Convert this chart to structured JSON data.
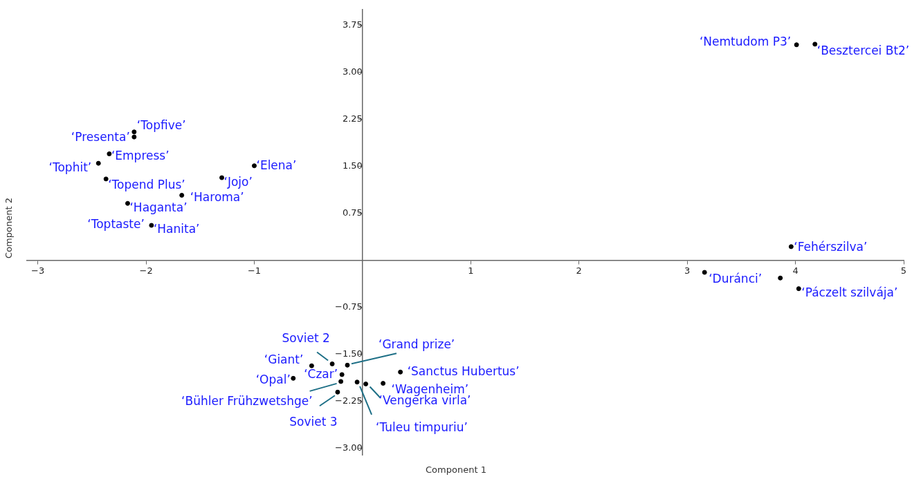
{
  "chart_data": {
    "type": "scatter",
    "xlabel": "Component 1",
    "ylabel": "Component 2",
    "xlim": [
      -3.1,
      5
    ],
    "ylim": [
      -3.1,
      4.0
    ],
    "xticks": [
      {
        "value": -3,
        "label": "−3"
      },
      {
        "value": -2,
        "label": "−2"
      },
      {
        "value": -1,
        "label": "−1"
      },
      1,
      2,
      3,
      4,
      5
    ],
    "yticks": [
      {
        "value": -3,
        "label": "−3.00"
      },
      {
        "value": -2.25,
        "label": "−2.25"
      },
      {
        "value": -1.5,
        "label": "−1.50"
      },
      {
        "value": -0.75,
        "label": "−0.75"
      },
      0.75,
      {
        "value": 1.5,
        "label": "1.50"
      },
      2.25,
      {
        "value": 3,
        "label": "3.00"
      },
      3.75
    ],
    "grid": false,
    "legend": false,
    "marker": "circle",
    "series": [
      {
        "color": "#000000",
        "x": [
          4.01,
          4.18,
          3.96,
          3.16,
          3.86,
          4.03,
          -2.11,
          -2.11,
          -2.34,
          -2.44,
          -1.0,
          -1.3,
          -2.37,
          -1.67,
          -2.17,
          -1.95,
          -0.47,
          -0.28,
          -0.14,
          -0.19,
          -0.64,
          -0.2,
          -0.23,
          -0.05,
          0.03,
          0.19,
          0.35
        ],
        "values": [
          3.44,
          3.45,
          0.22,
          -0.19,
          -0.28,
          -0.45,
          2.05,
          1.97,
          1.7,
          1.55,
          1.51,
          1.32,
          1.3,
          1.04,
          0.91,
          0.56,
          -1.68,
          -1.65,
          -1.67,
          -1.82,
          -1.88,
          -1.93,
          -2.1,
          -1.94,
          -1.97,
          -1.96,
          -1.78
        ]
      }
    ],
    "annotations": [
      {
        "text": "‘Nemtudom P3’",
        "x": 4.01,
        "y": 3.44
      },
      {
        "text": "‘Besztercei Bt2’",
        "x": 4.18,
        "y": 3.45
      },
      {
        "text": "‘Fehérszilva’",
        "x": 3.96,
        "y": 0.22
      },
      {
        "text": "‘Duránci’",
        "x": 3.16,
        "y": -0.19
      },
      {
        "text": "‘Páczelt szilvája’",
        "x": 4.03,
        "y": -0.45
      },
      {
        "text": "‘Topfive’",
        "x": -2.11,
        "y": 2.05
      },
      {
        "text": "‘Presenta’",
        "x": -2.11,
        "y": 1.97
      },
      {
        "text": "‘Empress’",
        "x": -2.34,
        "y": 1.7
      },
      {
        "text": "‘Tophit’",
        "x": -2.44,
        "y": 1.55
      },
      {
        "text": "‘Elena’",
        "x": -1.0,
        "y": 1.51
      },
      {
        "text": "‘Jojo’",
        "x": -1.3,
        "y": 1.32
      },
      {
        "text": "‘Topend Plus’",
        "x": -2.37,
        "y": 1.3
      },
      {
        "text": "‘Haroma’",
        "x": -1.67,
        "y": 1.04
      },
      {
        "text": "‘Haganta’",
        "x": -2.17,
        "y": 0.91
      },
      {
        "text": "‘Toptaste’",
        "x": -1.95,
        "y": 0.56
      },
      {
        "text": "‘Hanita’",
        "x": -1.95,
        "y": 0.56
      },
      {
        "text": "‘Giant’",
        "x": -0.47,
        "y": -1.68
      },
      {
        "text": "Soviet 2",
        "x": -0.28,
        "y": -1.65
      },
      {
        "text": "‘Grand prize’",
        "x": -0.14,
        "y": -1.67
      },
      {
        "text": "‘Czar’",
        "x": -0.19,
        "y": -1.82
      },
      {
        "text": "‘Opal’",
        "x": -0.64,
        "y": -1.88
      },
      {
        "text": "‘Bühler Frühzwetshge’",
        "x": -0.2,
        "y": -1.93
      },
      {
        "text": "Soviet 3",
        "x": -0.23,
        "y": -2.1
      },
      {
        "text": "‘Tuleu timpuriu’",
        "x": -0.05,
        "y": -1.94
      },
      {
        "text": "‘Vengerka virla’",
        "x": 0.03,
        "y": -1.97
      },
      {
        "text": "‘Wagenheim’",
        "x": 0.19,
        "y": -1.96
      },
      {
        "text": "‘Sanctus Hubertus’",
        "x": 0.35,
        "y": -1.78
      }
    ]
  }
}
